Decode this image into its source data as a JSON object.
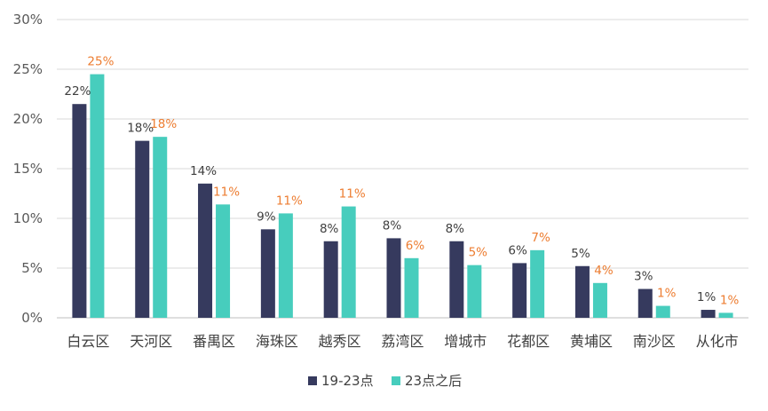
{
  "chart_data": {
    "type": "bar",
    "title": "",
    "xlabel": "",
    "ylabel": "",
    "ylim": [
      0,
      30
    ],
    "yticks": [
      "0%",
      "5%",
      "10%",
      "15%",
      "20%",
      "25%",
      "30%"
    ],
    "grid": true,
    "legend_position": "bottom",
    "categories": [
      "白云区",
      "天河区",
      "番禺区",
      "海珠区",
      "越秀区",
      "荔湾区",
      "增城市",
      "花都区",
      "黄埔区",
      "南沙区",
      "从化市"
    ],
    "series": [
      {
        "name": "19-23点",
        "color": "#363a5e",
        "label_color": "#404040",
        "values": [
          21.5,
          17.8,
          13.5,
          8.9,
          7.7,
          8.0,
          7.7,
          5.5,
          5.2,
          2.9,
          0.8
        ],
        "labels": [
          "22%",
          "18%",
          "14%",
          "9%",
          "8%",
          "8%",
          "8%",
          "6%",
          "5%",
          "3%",
          "1%"
        ]
      },
      {
        "name": "23点之后",
        "color": "#47cdbd",
        "label_color": "#ed7d31",
        "values": [
          24.5,
          18.2,
          11.4,
          10.5,
          11.2,
          6.0,
          5.3,
          6.8,
          3.5,
          1.2,
          0.5
        ],
        "labels": [
          "25%",
          "18%",
          "11%",
          "11%",
          "11%",
          "6%",
          "5%",
          "7%",
          "4%",
          "1%",
          "1%"
        ]
      }
    ]
  }
}
